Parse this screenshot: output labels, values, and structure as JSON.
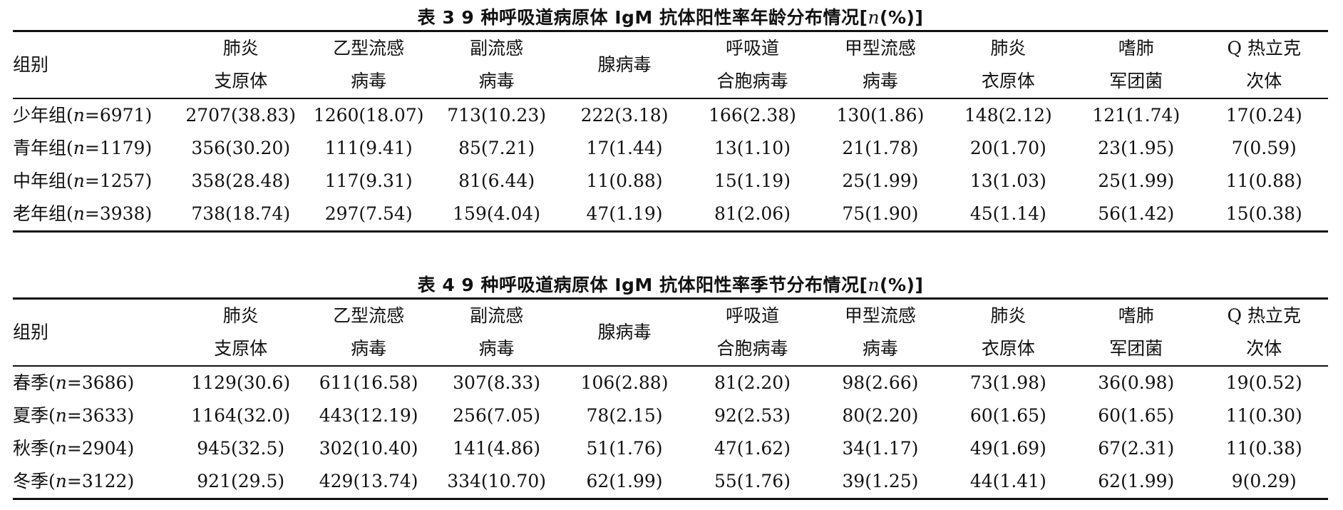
{
  "table3": {
    "caption_prefix": "表 3   9 种呼吸道病原体 IgM 抗体阳性率年龄分布情况[",
    "caption_n": "n",
    "caption_suffix": "(%)]",
    "group_header": "组别",
    "columns": [
      {
        "l1": "肺炎",
        "l2": "支原体"
      },
      {
        "l1": "乙型流感",
        "l2": "病毒"
      },
      {
        "l1": "副流感",
        "l2": "病毒"
      },
      {
        "l1": "腺病毒",
        "l2": ""
      },
      {
        "l1": "呼吸道",
        "l2": "合胞病毒"
      },
      {
        "l1": "甲型流感",
        "l2": "病毒"
      },
      {
        "l1": "肺炎",
        "l2": "衣原体"
      },
      {
        "l1": "嗜肺",
        "l2": "军团菌"
      },
      {
        "l1": "Q 热立克",
        "l2": "次体"
      }
    ],
    "rows": [
      {
        "group": "少年组",
        "n_label": "n",
        "n_value": "=6971)",
        "open": "(",
        "values": [
          "2707(38.83)",
          "1260(18.07)",
          "713(10.23)",
          "222(3.18)",
          "166(2.38)",
          "130(1.86)",
          "148(2.12)",
          "121(1.74)",
          "17(0.24)"
        ]
      },
      {
        "group": "青年组",
        "n_label": "n",
        "n_value": "=1179)",
        "open": "(",
        "values": [
          "356(30.20)",
          "111(9.41)",
          "85(7.21)",
          "17(1.44)",
          "13(1.10)",
          "21(1.78)",
          "20(1.70)",
          "23(1.95)",
          "7(0.59)"
        ]
      },
      {
        "group": "中年组",
        "n_label": "n",
        "n_value": "=1257)",
        "open": "(",
        "values": [
          "358(28.48)",
          "117(9.31)",
          "81(6.44)",
          "11(0.88)",
          "15(1.19)",
          "25(1.99)",
          "13(1.03)",
          "25(1.99)",
          "11(0.88)"
        ]
      },
      {
        "group": "老年组",
        "n_label": "n",
        "n_value": "=3938)",
        "open": "(",
        "values": [
          "738(18.74)",
          "297(7.54)",
          "159(4.04)",
          "47(1.19)",
          "81(2.06)",
          "75(1.90)",
          "45(1.14)",
          "56(1.42)",
          "15(0.38)"
        ]
      }
    ]
  },
  "table4": {
    "caption_prefix": "表 4   9 种呼吸道病原体 IgM 抗体阳性率季节分布情况[",
    "caption_n": "n",
    "caption_suffix": "(%)]",
    "group_header": "组别",
    "columns": [
      {
        "l1": "肺炎",
        "l2": "支原体"
      },
      {
        "l1": "乙型流感",
        "l2": "病毒"
      },
      {
        "l1": "副流感",
        "l2": "病毒"
      },
      {
        "l1": "腺病毒",
        "l2": ""
      },
      {
        "l1": "呼吸道",
        "l2": "合胞病毒"
      },
      {
        "l1": "甲型流感",
        "l2": "病毒"
      },
      {
        "l1": "肺炎",
        "l2": "衣原体"
      },
      {
        "l1": "嗜肺",
        "l2": "军团菌"
      },
      {
        "l1": "Q 热立克",
        "l2": "次体"
      }
    ],
    "rows": [
      {
        "group": "春季",
        "n_label": "n",
        "n_value": "=3686)",
        "open": "(",
        "values": [
          "1129(30.6)",
          "611(16.58)",
          "307(8.33)",
          "106(2.88)",
          "81(2.20)",
          "98(2.66)",
          "73(1.98)",
          "36(0.98)",
          "19(0.52)"
        ]
      },
      {
        "group": "夏季",
        "n_label": "n",
        "n_value": "=3633)",
        "open": "(",
        "values": [
          "1164(32.0)",
          "443(12.19)",
          "256(7.05)",
          "78(2.15)",
          "92(2.53)",
          "80(2.20)",
          "60(1.65)",
          "60(1.65)",
          "11(0.30)"
        ]
      },
      {
        "group": "秋季",
        "n_label": "n",
        "n_value": "=2904)",
        "open": "(",
        "values": [
          "945(32.5)",
          "302(10.40)",
          "141(4.86)",
          "51(1.76)",
          "47(1.62)",
          "34(1.17)",
          "49(1.69)",
          "67(2.31)",
          "11(0.38)"
        ]
      },
      {
        "group": "冬季",
        "n_label": "n",
        "n_value": "=3122)",
        "open": "(",
        "values": [
          "921(29.5)",
          "429(13.74)",
          "334(10.70)",
          "62(1.99)",
          "55(1.76)",
          "39(1.25)",
          "44(1.41)",
          "62(1.99)",
          "9(0.29)"
        ]
      }
    ]
  }
}
